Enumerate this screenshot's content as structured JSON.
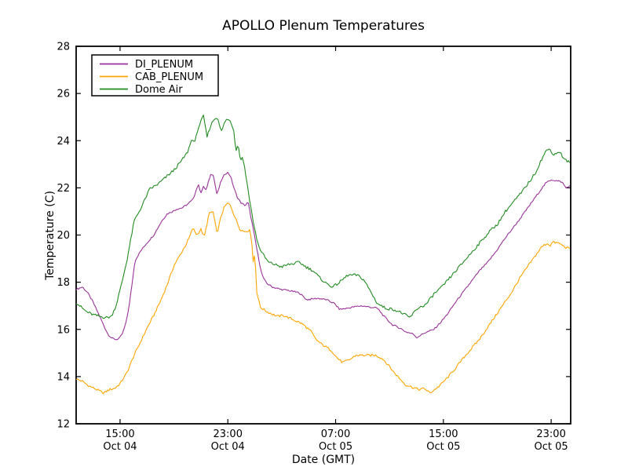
{
  "title": "APOLLO Plenum Temperatures",
  "xlabel": "Date (GMT)",
  "ylabel": "Temperature (C)",
  "legend": {
    "position": "upper left",
    "items": [
      {
        "label": "DI_PLENUM",
        "color": "#993399"
      },
      {
        "label": "CAB_PLENUM",
        "color": "#FFA500"
      },
      {
        "label": "Dome Air",
        "color": "#228B22"
      }
    ]
  },
  "axes": {
    "ylim": [
      12,
      28
    ],
    "y_ticks": [
      12,
      14,
      16,
      18,
      20,
      22,
      24,
      26,
      28
    ],
    "x_ticks": [
      {
        "hour": 15,
        "time": "15:00",
        "date": "Oct 04"
      },
      {
        "hour": 23,
        "time": "23:00",
        "date": "Oct 04"
      },
      {
        "hour": 31,
        "time": "07:00",
        "date": "Oct 05"
      },
      {
        "hour": 39,
        "time": "15:00",
        "date": "Oct 05"
      },
      {
        "hour": 47,
        "time": "23:00",
        "date": "Oct 05"
      }
    ],
    "xlim_hours": [
      11.74,
      48.45
    ],
    "grid": false
  },
  "chart_data": {
    "type": "line",
    "title": "APOLLO Plenum Temperatures",
    "xlabel": "Date (GMT)",
    "ylabel": "Temperature (C)",
    "ylim": [
      12,
      28
    ],
    "x_unit": "hours GMT since Oct 04 00:00",
    "x_tick_hours": [
      15,
      23,
      31,
      39,
      47
    ],
    "x_tick_labels": [
      "15:00 Oct 04",
      "23:00 Oct 04",
      "07:00 Oct 05",
      "15:00 Oct 05",
      "23:00 Oct 05"
    ],
    "legend_position": "upper left",
    "grid": false,
    "series": [
      {
        "name": "DI_PLENUM",
        "color": "#993399",
        "noise": 0.035,
        "points": [
          [
            11.74,
            17.7
          ],
          [
            12.0,
            17.75
          ],
          [
            12.2,
            17.8
          ],
          [
            12.6,
            17.55
          ],
          [
            13.0,
            17.15
          ],
          [
            13.45,
            16.6
          ],
          [
            13.8,
            16.15
          ],
          [
            14.1,
            15.8
          ],
          [
            14.4,
            15.62
          ],
          [
            14.75,
            15.57
          ],
          [
            15.0,
            15.65
          ],
          [
            15.2,
            15.85
          ],
          [
            15.45,
            16.3
          ],
          [
            15.7,
            17.1
          ],
          [
            15.95,
            18.2
          ],
          [
            16.1,
            18.9
          ],
          [
            16.5,
            19.3
          ],
          [
            16.9,
            19.6
          ],
          [
            17.2,
            19.8
          ],
          [
            17.5,
            20.0
          ],
          [
            17.8,
            20.3
          ],
          [
            18.1,
            20.6
          ],
          [
            18.5,
            20.9
          ],
          [
            18.9,
            21.0
          ],
          [
            19.2,
            21.1
          ],
          [
            19.6,
            21.15
          ],
          [
            20.0,
            21.3
          ],
          [
            20.4,
            21.5
          ],
          [
            20.8,
            22.15
          ],
          [
            21.0,
            21.8
          ],
          [
            21.2,
            22.05
          ],
          [
            21.4,
            21.9
          ],
          [
            21.7,
            22.55
          ],
          [
            21.9,
            22.6
          ],
          [
            22.2,
            21.7
          ],
          [
            22.5,
            22.3
          ],
          [
            22.8,
            22.6
          ],
          [
            23.0,
            22.65
          ],
          [
            23.2,
            22.5
          ],
          [
            23.45,
            22.0
          ],
          [
            23.7,
            21.6
          ],
          [
            24.0,
            21.35
          ],
          [
            24.3,
            21.25
          ],
          [
            24.5,
            21.4
          ],
          [
            24.8,
            20.5
          ],
          [
            25.0,
            19.9
          ],
          [
            25.25,
            19.1
          ],
          [
            25.5,
            18.4
          ],
          [
            25.7,
            18.1
          ],
          [
            25.9,
            17.95
          ],
          [
            26.3,
            17.8
          ],
          [
            26.9,
            17.7
          ],
          [
            27.5,
            17.65
          ],
          [
            28.3,
            17.55
          ],
          [
            28.85,
            17.26
          ],
          [
            29.4,
            17.3
          ],
          [
            29.7,
            17.32
          ],
          [
            30.3,
            17.26
          ],
          [
            30.9,
            17.1
          ],
          [
            31.3,
            16.85
          ],
          [
            31.9,
            16.9
          ],
          [
            32.3,
            16.95
          ],
          [
            32.9,
            17.0
          ],
          [
            33.5,
            16.95
          ],
          [
            34.1,
            16.9
          ],
          [
            34.6,
            16.55
          ],
          [
            35.2,
            16.2
          ],
          [
            35.8,
            16.05
          ],
          [
            36.2,
            15.9
          ],
          [
            36.8,
            15.8
          ],
          [
            37.0,
            15.65
          ],
          [
            37.6,
            15.85
          ],
          [
            38.3,
            16.0
          ],
          [
            38.8,
            16.3
          ],
          [
            39.3,
            16.65
          ],
          [
            39.9,
            17.15
          ],
          [
            40.5,
            17.6
          ],
          [
            41.1,
            18.05
          ],
          [
            41.7,
            18.5
          ],
          [
            42.3,
            18.85
          ],
          [
            42.9,
            19.3
          ],
          [
            43.5,
            19.8
          ],
          [
            44.1,
            20.25
          ],
          [
            44.7,
            20.7
          ],
          [
            45.2,
            21.1
          ],
          [
            45.7,
            21.5
          ],
          [
            46.2,
            21.9
          ],
          [
            46.6,
            22.2
          ],
          [
            47.0,
            22.35
          ],
          [
            47.4,
            22.3
          ],
          [
            47.8,
            22.25
          ],
          [
            48.1,
            22.0
          ],
          [
            48.45,
            22.1
          ]
        ]
      },
      {
        "name": "CAB_PLENUM",
        "color": "#FFA500",
        "noise": 0.05,
        "points": [
          [
            11.74,
            13.9
          ],
          [
            12.2,
            13.8
          ],
          [
            12.7,
            13.6
          ],
          [
            13.1,
            13.5
          ],
          [
            13.5,
            13.38
          ],
          [
            13.8,
            13.3
          ],
          [
            14.2,
            13.45
          ],
          [
            14.6,
            13.5
          ],
          [
            15.0,
            13.7
          ],
          [
            15.5,
            14.15
          ],
          [
            16.0,
            14.85
          ],
          [
            16.5,
            15.45
          ],
          [
            17.0,
            16.05
          ],
          [
            17.5,
            16.6
          ],
          [
            18.0,
            17.2
          ],
          [
            18.5,
            17.9
          ],
          [
            19.0,
            18.7
          ],
          [
            19.5,
            19.2
          ],
          [
            19.9,
            19.6
          ],
          [
            20.15,
            19.9
          ],
          [
            20.4,
            20.3
          ],
          [
            20.7,
            20.0
          ],
          [
            21.0,
            20.25
          ],
          [
            21.25,
            19.9
          ],
          [
            21.6,
            20.9
          ],
          [
            21.9,
            21.0
          ],
          [
            22.2,
            20.05
          ],
          [
            22.5,
            20.8
          ],
          [
            22.75,
            21.2
          ],
          [
            23.0,
            21.35
          ],
          [
            23.2,
            21.25
          ],
          [
            23.5,
            20.8
          ],
          [
            23.9,
            20.25
          ],
          [
            24.2,
            20.15
          ],
          [
            24.6,
            20.2
          ],
          [
            24.75,
            19.95
          ],
          [
            24.9,
            18.7
          ],
          [
            25.0,
            19.3
          ],
          [
            25.15,
            17.6
          ],
          [
            25.4,
            16.95
          ],
          [
            25.9,
            16.75
          ],
          [
            26.3,
            16.65
          ],
          [
            26.7,
            16.55
          ],
          [
            27.1,
            16.6
          ],
          [
            27.5,
            16.5
          ],
          [
            27.9,
            16.4
          ],
          [
            28.3,
            16.3
          ],
          [
            28.6,
            16.2
          ],
          [
            28.9,
            16.05
          ],
          [
            29.2,
            15.9
          ],
          [
            29.5,
            15.6
          ],
          [
            29.9,
            15.4
          ],
          [
            30.3,
            15.25
          ],
          [
            30.7,
            15.1
          ],
          [
            31.1,
            14.8
          ],
          [
            31.5,
            14.6
          ],
          [
            32.0,
            14.7
          ],
          [
            32.5,
            14.9
          ],
          [
            33.0,
            14.9
          ],
          [
            33.5,
            14.9
          ],
          [
            34.0,
            14.9
          ],
          [
            34.5,
            14.75
          ],
          [
            34.9,
            14.5
          ],
          [
            35.3,
            14.2
          ],
          [
            35.7,
            13.95
          ],
          [
            36.2,
            13.65
          ],
          [
            36.7,
            13.55
          ],
          [
            37.2,
            13.45
          ],
          [
            37.6,
            13.5
          ],
          [
            38.0,
            13.3
          ],
          [
            38.35,
            13.45
          ],
          [
            38.7,
            13.6
          ],
          [
            39.3,
            13.95
          ],
          [
            39.9,
            14.35
          ],
          [
            40.5,
            14.8
          ],
          [
            41.1,
            15.2
          ],
          [
            41.7,
            15.6
          ],
          [
            42.3,
            16.1
          ],
          [
            42.9,
            16.6
          ],
          [
            43.5,
            17.1
          ],
          [
            44.1,
            17.6
          ],
          [
            44.7,
            18.2
          ],
          [
            45.3,
            18.7
          ],
          [
            45.8,
            19.1
          ],
          [
            46.3,
            19.5
          ],
          [
            46.7,
            19.65
          ],
          [
            46.95,
            19.55
          ],
          [
            47.1,
            19.7
          ],
          [
            47.6,
            19.65
          ],
          [
            48.0,
            19.5
          ],
          [
            48.45,
            19.4
          ]
        ]
      },
      {
        "name": "Dome Air",
        "color": "#228B22",
        "noise": 0.06,
        "points": [
          [
            11.74,
            17.15
          ],
          [
            12.1,
            16.95
          ],
          [
            12.5,
            16.75
          ],
          [
            13.0,
            16.62
          ],
          [
            13.5,
            16.55
          ],
          [
            14.0,
            16.5
          ],
          [
            14.35,
            16.55
          ],
          [
            14.7,
            17.0
          ],
          [
            15.1,
            17.9
          ],
          [
            15.5,
            18.9
          ],
          [
            16.05,
            20.6
          ],
          [
            16.6,
            21.2
          ],
          [
            17.2,
            21.95
          ],
          [
            17.8,
            22.15
          ],
          [
            18.4,
            22.45
          ],
          [
            19.0,
            22.75
          ],
          [
            19.5,
            23.1
          ],
          [
            20.0,
            23.5
          ],
          [
            20.35,
            24.1
          ],
          [
            20.55,
            23.9
          ],
          [
            20.75,
            24.45
          ],
          [
            20.95,
            24.75
          ],
          [
            21.2,
            25.05
          ],
          [
            21.45,
            24.15
          ],
          [
            21.7,
            24.6
          ],
          [
            21.95,
            24.9
          ],
          [
            22.25,
            25.0
          ],
          [
            22.5,
            24.35
          ],
          [
            22.85,
            24.9
          ],
          [
            23.2,
            24.85
          ],
          [
            23.45,
            24.4
          ],
          [
            23.6,
            23.6
          ],
          [
            23.75,
            23.85
          ],
          [
            23.95,
            23.15
          ],
          [
            24.1,
            23.35
          ],
          [
            24.4,
            22.3
          ],
          [
            24.7,
            21.2
          ],
          [
            25.0,
            20.2
          ],
          [
            25.3,
            19.5
          ],
          [
            25.7,
            19.1
          ],
          [
            26.0,
            18.85
          ],
          [
            26.5,
            18.75
          ],
          [
            27.0,
            18.65
          ],
          [
            27.5,
            18.75
          ],
          [
            28.0,
            18.8
          ],
          [
            28.3,
            18.85
          ],
          [
            28.8,
            18.65
          ],
          [
            29.3,
            18.5
          ],
          [
            29.8,
            18.2
          ],
          [
            30.3,
            17.95
          ],
          [
            30.8,
            17.8
          ],
          [
            31.3,
            18.0
          ],
          [
            31.9,
            18.3
          ],
          [
            32.6,
            18.3
          ],
          [
            33.1,
            18.1
          ],
          [
            33.6,
            17.6
          ],
          [
            34.1,
            17.1
          ],
          [
            34.7,
            16.9
          ],
          [
            35.3,
            16.85
          ],
          [
            35.9,
            16.7
          ],
          [
            36.5,
            16.5
          ],
          [
            37.1,
            16.9
          ],
          [
            37.7,
            17.05
          ],
          [
            38.3,
            17.5
          ],
          [
            38.9,
            17.8
          ],
          [
            39.5,
            18.2
          ],
          [
            40.1,
            18.6
          ],
          [
            40.7,
            19.0
          ],
          [
            41.3,
            19.4
          ],
          [
            41.9,
            19.8
          ],
          [
            42.5,
            20.2
          ],
          [
            43.0,
            20.45
          ],
          [
            43.6,
            21.0
          ],
          [
            44.2,
            21.4
          ],
          [
            44.8,
            21.8
          ],
          [
            45.3,
            22.2
          ],
          [
            45.8,
            22.6
          ],
          [
            46.2,
            23.1
          ],
          [
            46.6,
            23.55
          ],
          [
            46.9,
            23.65
          ],
          [
            47.2,
            23.4
          ],
          [
            47.6,
            23.55
          ],
          [
            48.0,
            23.2
          ],
          [
            48.45,
            23.05
          ]
        ]
      }
    ]
  }
}
